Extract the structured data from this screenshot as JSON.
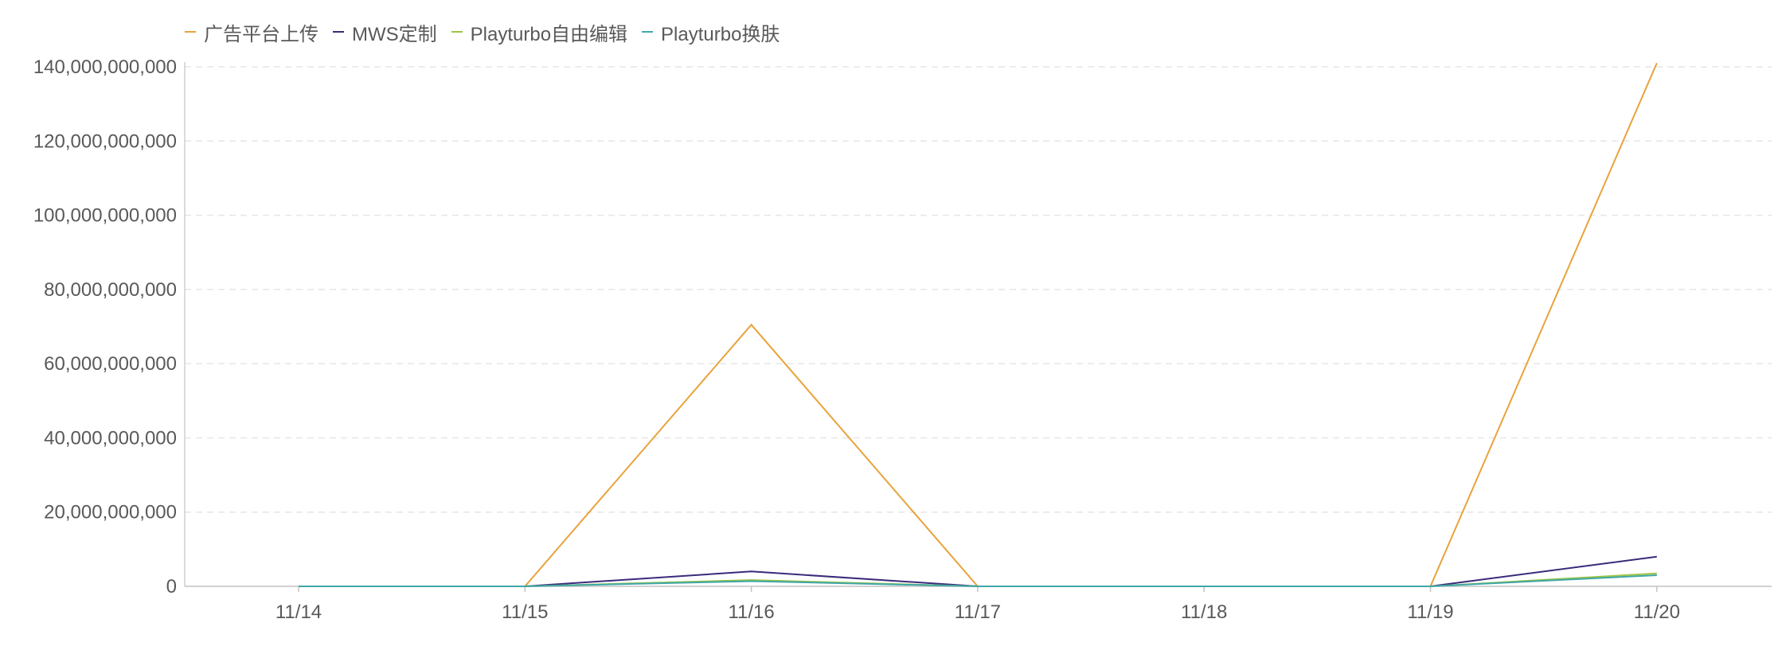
{
  "chart_data": {
    "type": "line",
    "categories": [
      "11/14",
      "11/15",
      "11/16",
      "11/17",
      "11/18",
      "11/19",
      "11/20"
    ],
    "series": [
      {
        "name": "广告平台上传",
        "color": "#E8A33C",
        "values": [
          0,
          0,
          70500000000,
          0,
          0,
          0,
          141000000000
        ]
      },
      {
        "name": "MWS定制",
        "color": "#3B2A7A",
        "values": [
          0,
          0,
          4000000000,
          0,
          0,
          0,
          8000000000
        ]
      },
      {
        "name": "Playturbo自由编辑",
        "color": "#9DC543",
        "values": [
          0,
          0,
          1700000000,
          0,
          0,
          0,
          3500000000
        ]
      },
      {
        "name": "Playturbo换肤",
        "color": "#3FA7A8",
        "values": [
          0,
          0,
          1400000000,
          0,
          0,
          0,
          3000000000
        ]
      }
    ],
    "yticks": [
      "0",
      "20,000,000,000",
      "40,000,000,000",
      "60,000,000,000",
      "80,000,000,000",
      "100,000,000,000",
      "120,000,000,000",
      "140,000,000,000"
    ],
    "ylim": [
      0,
      140000000000
    ],
    "grid": true,
    "legend_position": "top-left"
  }
}
